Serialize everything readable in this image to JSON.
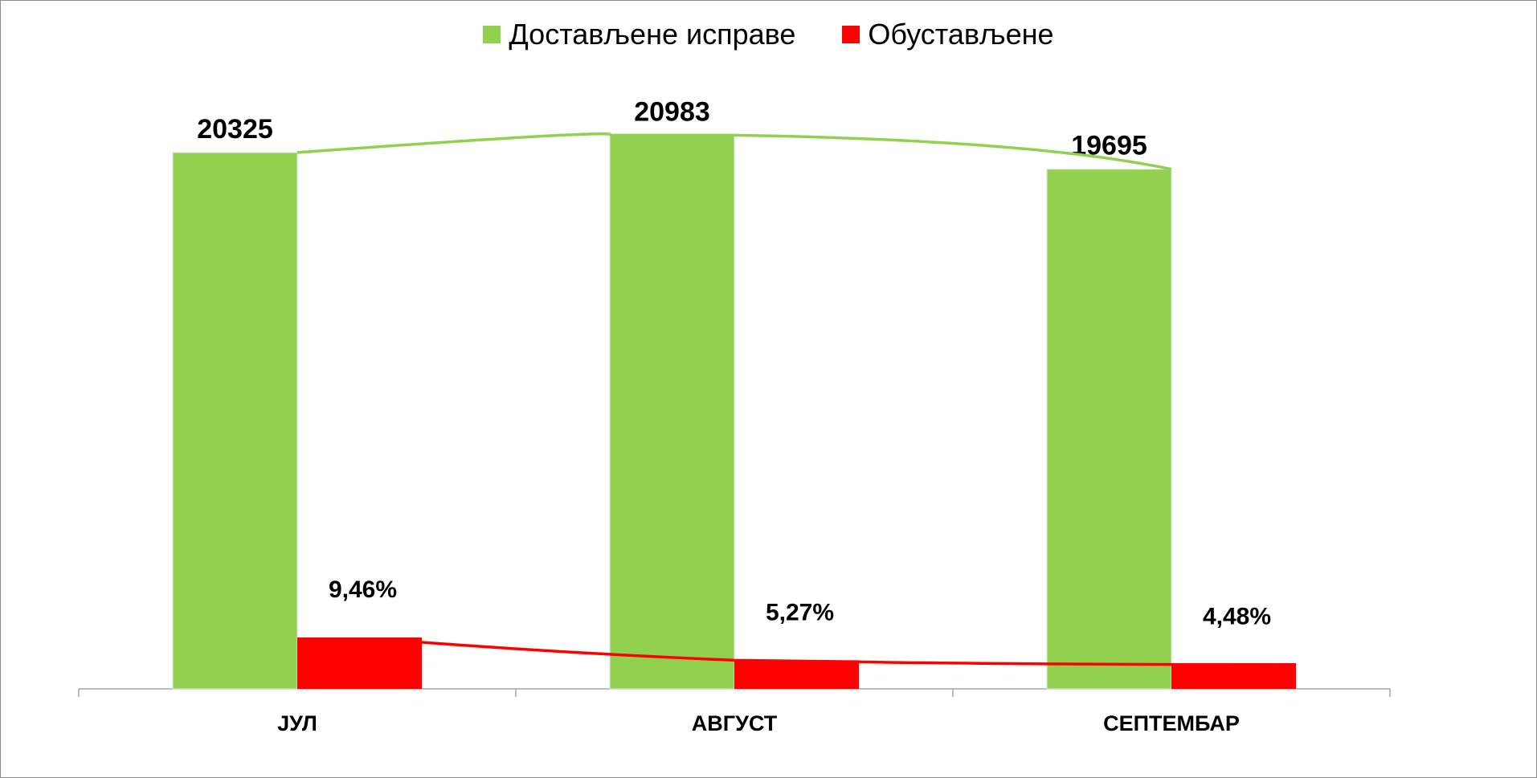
{
  "legend": {
    "delivered_label": "Достављене исправе",
    "suspended_label": "Обустављене"
  },
  "colors": {
    "delivered": "#92d050",
    "suspended": "#ff0000",
    "axis": "#a6a6a6"
  },
  "chart_data": {
    "type": "bar",
    "categories": [
      "ЈУЛ",
      "АВГУСТ",
      "СЕПТЕМБАР"
    ],
    "series": [
      {
        "name": "Достављене исправе",
        "values": [
          20325,
          20983,
          19695
        ],
        "labels": [
          "20325",
          "20983",
          "19695"
        ]
      },
      {
        "name": "Обустављене",
        "values": [
          9.46,
          5.27,
          4.48
        ],
        "labels": [
          "9,46%",
          "5,27%",
          "4,48%"
        ]
      }
    ],
    "trendlines": true,
    "legend_position": "top",
    "grid": false
  }
}
